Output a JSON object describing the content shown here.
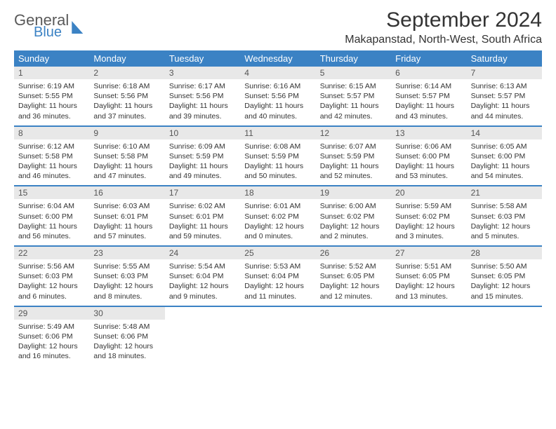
{
  "logo": {
    "line1": "General",
    "line2": "Blue"
  },
  "title": "September 2024",
  "location": "Makapanstad, North-West, South Africa",
  "dayNames": [
    "Sunday",
    "Monday",
    "Tuesday",
    "Wednesday",
    "Thursday",
    "Friday",
    "Saturday"
  ],
  "colors": {
    "header_bg": "#3b82c4",
    "daynum_bg": "#e8e8e8",
    "text": "#333333",
    "logo_gray": "#5a5a5a"
  },
  "weeks": [
    [
      {
        "n": "1",
        "sr": "6:19 AM",
        "ss": "5:55 PM",
        "dl": "11 hours and 36 minutes."
      },
      {
        "n": "2",
        "sr": "6:18 AM",
        "ss": "5:56 PM",
        "dl": "11 hours and 37 minutes."
      },
      {
        "n": "3",
        "sr": "6:17 AM",
        "ss": "5:56 PM",
        "dl": "11 hours and 39 minutes."
      },
      {
        "n": "4",
        "sr": "6:16 AM",
        "ss": "5:56 PM",
        "dl": "11 hours and 40 minutes."
      },
      {
        "n": "5",
        "sr": "6:15 AM",
        "ss": "5:57 PM",
        "dl": "11 hours and 42 minutes."
      },
      {
        "n": "6",
        "sr": "6:14 AM",
        "ss": "5:57 PM",
        "dl": "11 hours and 43 minutes."
      },
      {
        "n": "7",
        "sr": "6:13 AM",
        "ss": "5:57 PM",
        "dl": "11 hours and 44 minutes."
      }
    ],
    [
      {
        "n": "8",
        "sr": "6:12 AM",
        "ss": "5:58 PM",
        "dl": "11 hours and 46 minutes."
      },
      {
        "n": "9",
        "sr": "6:10 AM",
        "ss": "5:58 PM",
        "dl": "11 hours and 47 minutes."
      },
      {
        "n": "10",
        "sr": "6:09 AM",
        "ss": "5:59 PM",
        "dl": "11 hours and 49 minutes."
      },
      {
        "n": "11",
        "sr": "6:08 AM",
        "ss": "5:59 PM",
        "dl": "11 hours and 50 minutes."
      },
      {
        "n": "12",
        "sr": "6:07 AM",
        "ss": "5:59 PM",
        "dl": "11 hours and 52 minutes."
      },
      {
        "n": "13",
        "sr": "6:06 AM",
        "ss": "6:00 PM",
        "dl": "11 hours and 53 minutes."
      },
      {
        "n": "14",
        "sr": "6:05 AM",
        "ss": "6:00 PM",
        "dl": "11 hours and 54 minutes."
      }
    ],
    [
      {
        "n": "15",
        "sr": "6:04 AM",
        "ss": "6:00 PM",
        "dl": "11 hours and 56 minutes."
      },
      {
        "n": "16",
        "sr": "6:03 AM",
        "ss": "6:01 PM",
        "dl": "11 hours and 57 minutes."
      },
      {
        "n": "17",
        "sr": "6:02 AM",
        "ss": "6:01 PM",
        "dl": "11 hours and 59 minutes."
      },
      {
        "n": "18",
        "sr": "6:01 AM",
        "ss": "6:02 PM",
        "dl": "12 hours and 0 minutes."
      },
      {
        "n": "19",
        "sr": "6:00 AM",
        "ss": "6:02 PM",
        "dl": "12 hours and 2 minutes."
      },
      {
        "n": "20",
        "sr": "5:59 AM",
        "ss": "6:02 PM",
        "dl": "12 hours and 3 minutes."
      },
      {
        "n": "21",
        "sr": "5:58 AM",
        "ss": "6:03 PM",
        "dl": "12 hours and 5 minutes."
      }
    ],
    [
      {
        "n": "22",
        "sr": "5:56 AM",
        "ss": "6:03 PM",
        "dl": "12 hours and 6 minutes."
      },
      {
        "n": "23",
        "sr": "5:55 AM",
        "ss": "6:03 PM",
        "dl": "12 hours and 8 minutes."
      },
      {
        "n": "24",
        "sr": "5:54 AM",
        "ss": "6:04 PM",
        "dl": "12 hours and 9 minutes."
      },
      {
        "n": "25",
        "sr": "5:53 AM",
        "ss": "6:04 PM",
        "dl": "12 hours and 11 minutes."
      },
      {
        "n": "26",
        "sr": "5:52 AM",
        "ss": "6:05 PM",
        "dl": "12 hours and 12 minutes."
      },
      {
        "n": "27",
        "sr": "5:51 AM",
        "ss": "6:05 PM",
        "dl": "12 hours and 13 minutes."
      },
      {
        "n": "28",
        "sr": "5:50 AM",
        "ss": "6:05 PM",
        "dl": "12 hours and 15 minutes."
      }
    ],
    [
      {
        "n": "29",
        "sr": "5:49 AM",
        "ss": "6:06 PM",
        "dl": "12 hours and 16 minutes."
      },
      {
        "n": "30",
        "sr": "5:48 AM",
        "ss": "6:06 PM",
        "dl": "12 hours and 18 minutes."
      },
      null,
      null,
      null,
      null,
      null
    ]
  ]
}
